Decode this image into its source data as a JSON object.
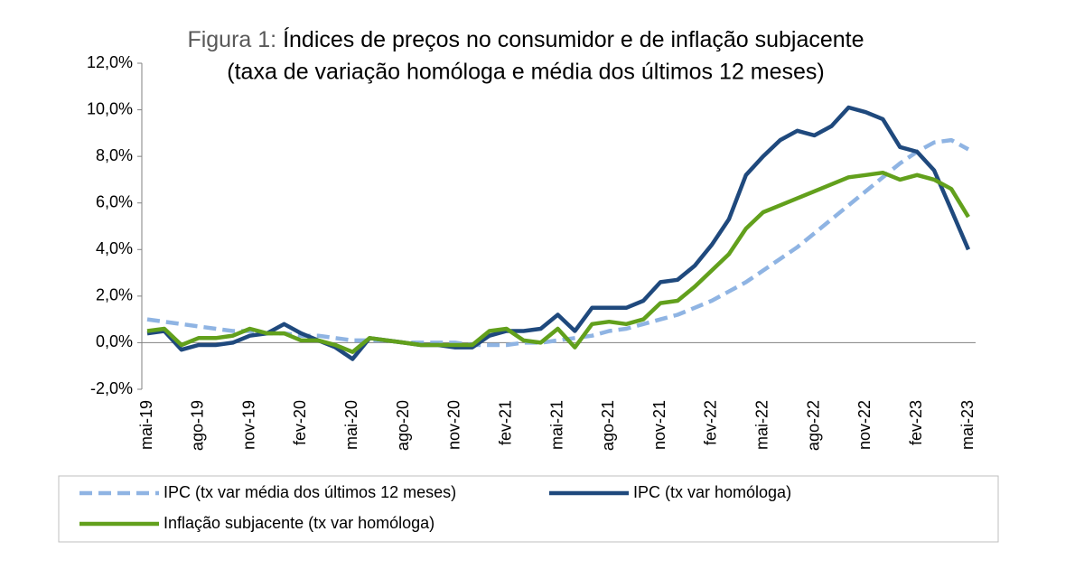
{
  "chart_data": {
    "type": "line",
    "figure_label": "Figura 1:",
    "title": "Índices de preços no consumidor e de inflação subjacente",
    "subtitle": "(taxa de variação homóloga e média dos últimos 12 meses)",
    "categories": [
      "mai-19",
      null,
      null,
      "ago-19",
      null,
      null,
      "nov-19",
      null,
      null,
      "fev-20",
      null,
      null,
      "mai-20",
      null,
      null,
      "ago-20",
      null,
      null,
      "nov-20",
      null,
      null,
      "fev-21",
      null,
      null,
      "mai-21",
      null,
      null,
      "ago-21",
      null,
      null,
      "nov-21",
      null,
      null,
      "fev-22",
      null,
      null,
      "mai-22",
      null,
      null,
      "ago-22",
      null,
      null,
      "nov-22",
      null,
      null,
      "fev-23",
      null,
      null,
      "mai-23"
    ],
    "series": [
      {
        "name": "IPC (tx var média dos últimos 12 meses)",
        "color": "#8fb4e3",
        "dashed": true,
        "values": [
          1.0,
          0.9,
          0.8,
          0.7,
          0.6,
          0.5,
          0.5,
          0.4,
          0.4,
          0.3,
          0.3,
          0.2,
          0.1,
          0.1,
          0.1,
          0.0,
          0.0,
          0.0,
          0.0,
          -0.1,
          -0.1,
          -0.1,
          0.0,
          0.0,
          0.1,
          0.2,
          0.3,
          0.5,
          0.6,
          0.8,
          1.0,
          1.2,
          1.5,
          1.8,
          2.2,
          2.6,
          3.1,
          3.6,
          4.1,
          4.7,
          5.3,
          5.9,
          6.5,
          7.1,
          7.7,
          8.2,
          8.6,
          8.7,
          8.3
        ]
      },
      {
        "name": "IPC (tx var homóloga)",
        "color": "#1f497d",
        "dashed": false,
        "values": [
          0.4,
          0.5,
          -0.3,
          -0.1,
          -0.1,
          0.0,
          0.3,
          0.4,
          0.8,
          0.4,
          0.1,
          -0.2,
          -0.7,
          0.2,
          0.1,
          0.0,
          -0.1,
          -0.1,
          -0.2,
          -0.2,
          0.3,
          0.5,
          0.5,
          0.6,
          1.2,
          0.5,
          1.5,
          1.5,
          1.5,
          1.8,
          2.6,
          2.7,
          3.3,
          4.2,
          5.3,
          7.2,
          8.0,
          8.7,
          9.1,
          8.9,
          9.3,
          10.1,
          9.9,
          9.6,
          8.4,
          8.2,
          7.4,
          5.7,
          4.0
        ]
      },
      {
        "name": "Inflação subjacente (tx var homóloga)",
        "color": "#62a01c",
        "dashed": false,
        "values": [
          0.5,
          0.6,
          -0.1,
          0.2,
          0.2,
          0.3,
          0.6,
          0.4,
          0.4,
          0.1,
          0.1,
          -0.1,
          -0.4,
          0.2,
          0.1,
          0.0,
          -0.1,
          -0.1,
          -0.1,
          -0.1,
          0.5,
          0.6,
          0.1,
          0.0,
          0.6,
          -0.2,
          0.8,
          0.9,
          0.8,
          1.0,
          1.7,
          1.8,
          2.4,
          3.1,
          3.8,
          4.9,
          5.6,
          5.9,
          6.2,
          6.5,
          6.8,
          7.1,
          7.2,
          7.3,
          7.0,
          7.2,
          7.0,
          6.6,
          5.4
        ]
      }
    ],
    "ylim": [
      -2,
      12
    ],
    "yticks": [
      {
        "value": -2,
        "label": "-2,0%"
      },
      {
        "value": 0,
        "label": "0,0%"
      },
      {
        "value": 2,
        "label": "2,0%"
      },
      {
        "value": 4,
        "label": "4,0%"
      },
      {
        "value": 6,
        "label": "6,0%"
      },
      {
        "value": 8,
        "label": "8,0%"
      },
      {
        "value": 10,
        "label": "10,0%"
      },
      {
        "value": 12,
        "label": "12,0%"
      }
    ]
  }
}
